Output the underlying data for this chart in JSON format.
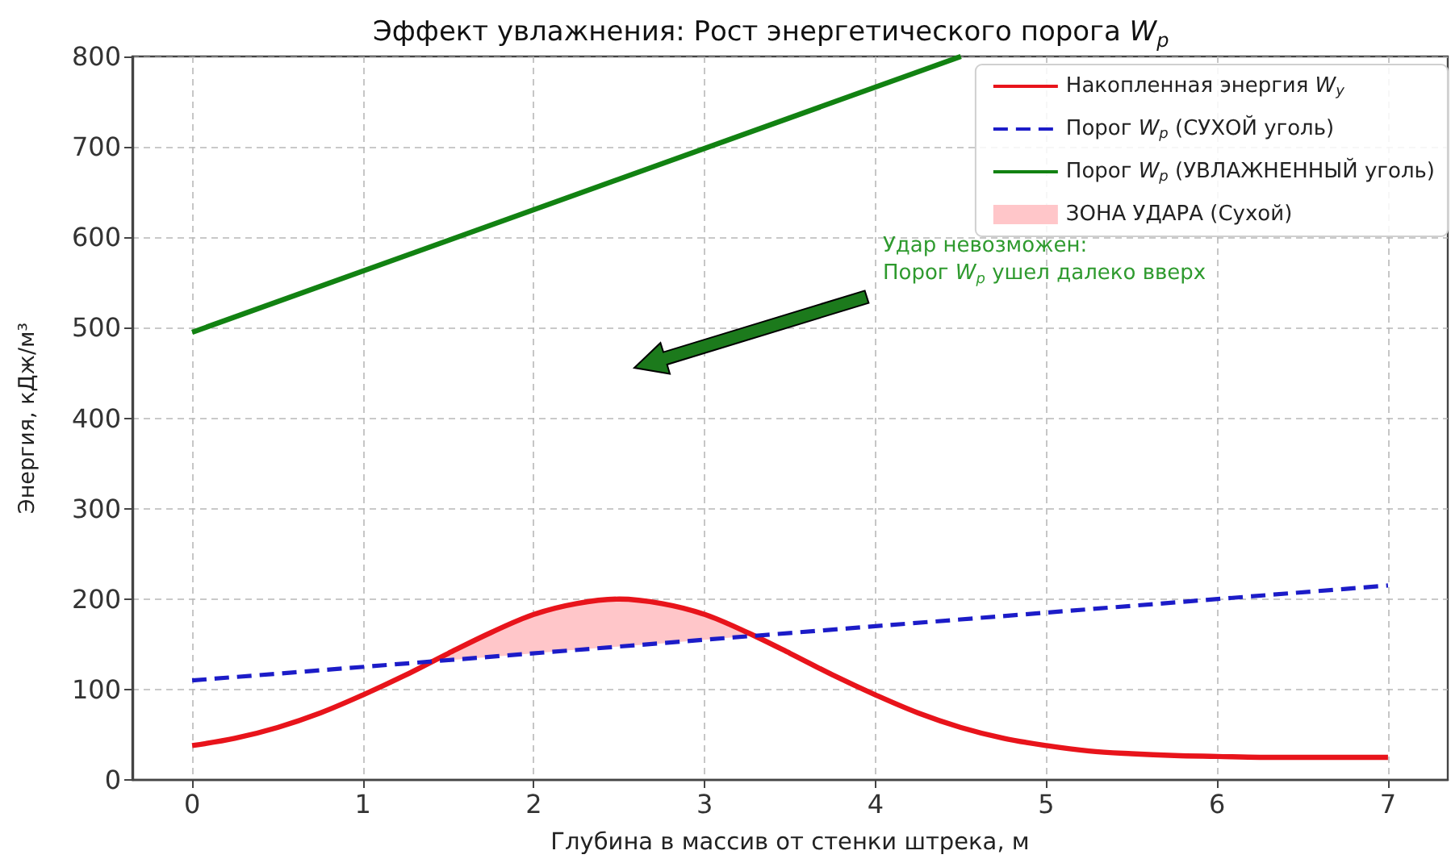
{
  "chart_data": {
    "type": "line",
    "title": "Эффект увлажнения: Рост энергетического порога W$_{p}$",
    "xlabel": "Глубина в массив от стенки штрека, м",
    "ylabel": "Энергия, кДж/м³",
    "xlim": [
      -0.35,
      7.35
    ],
    "xticks": [
      0,
      1,
      2,
      3,
      4,
      5,
      6,
      7
    ],
    "ylim": [
      0,
      800
    ],
    "yticks": [
      0,
      100,
      200,
      300,
      400,
      500,
      600,
      700,
      800
    ],
    "grid": true,
    "legend": "top right",
    "series": [
      {
        "name": "Накопленная энергия W$_{y}$",
        "color": "#e8141b",
        "line_style": "solid",
        "x": [
          0,
          0.25,
          0.5,
          0.75,
          1,
          1.25,
          1.5,
          1.75,
          2,
          2.25,
          2.5,
          2.75,
          3,
          3.25,
          3.5,
          3.75,
          4,
          4.25,
          4.5,
          4.75,
          5,
          5.25,
          5.5,
          5.75,
          6,
          6.25,
          6.5,
          6.75,
          7
        ],
        "values": [
          38,
          46,
          58,
          74,
          94,
          116,
          140,
          163,
          183,
          195,
          200,
          195,
          183,
          163,
          140,
          116,
          94,
          74,
          58,
          46,
          38,
          32,
          29,
          27,
          26,
          25,
          25,
          25,
          25
        ]
      },
      {
        "name": "Порог W$_{p}$ (СУХОЙ уголь)",
        "color": "#1c1cc8",
        "line_style": "dashed",
        "x": [
          0,
          7
        ],
        "values": [
          110,
          215
        ]
      },
      {
        "name": "Порог W$_{p}$ (УВЛАЖНЕННЫЙ уголь)",
        "color": "#128212",
        "line_style": "solid",
        "x": [
          0,
          4.5
        ],
        "values": [
          495,
          800
        ]
      },
      {
        "name": "ЗОНА УДАРА (Сухой)",
        "type": "area",
        "color": "#ffc6c9",
        "x": [
          1.42,
          1.5,
          1.75,
          2,
          2.25,
          2.5,
          2.75,
          3,
          3.25,
          3.3
        ],
        "values": [
          null,
          null,
          null,
          null,
          null,
          null,
          null,
          null,
          null,
          null
        ],
        "lower": [
          131,
          132.5,
          136,
          140,
          144,
          147.5,
          151,
          155,
          159,
          160
        ],
        "upper": [
          131,
          140,
          163,
          183,
          195,
          200,
          195,
          183,
          163,
          160
        ]
      }
    ],
    "annotations": [
      "Удар невозможен:\nПорог W$_{p}$ ушел далеко вверх"
    ]
  }
}
